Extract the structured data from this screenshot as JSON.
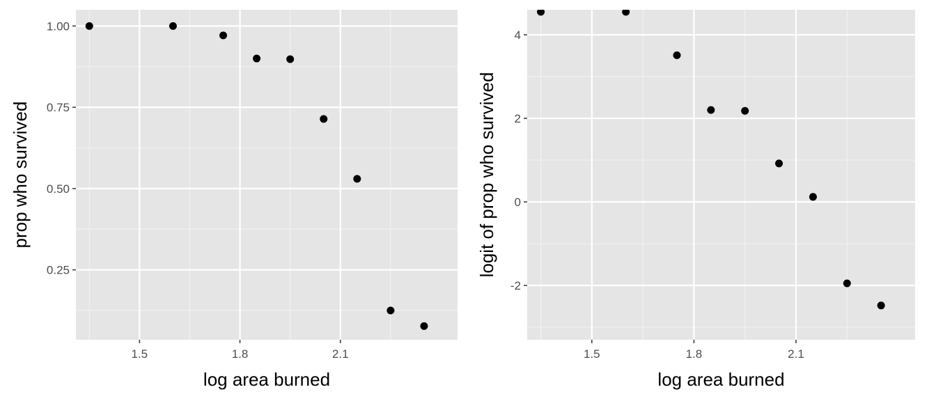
{
  "colors": {
    "panel_background": "#e5e5e5",
    "grid_major": "#ffffff",
    "grid_minor": "#f2f2f2",
    "point": "#000000",
    "tick_text": "#4d4d4d",
    "axis_title_text": "#000000"
  },
  "chart_data": [
    {
      "type": "scatter",
      "xlabel": "log area burned",
      "ylabel": "prop who survived",
      "xlim": [
        1.31,
        2.45
      ],
      "ylim": [
        0.035,
        1.05
      ],
      "x_ticks": [
        1.5,
        1.8,
        2.1
      ],
      "x_tick_labels": [
        "1.5",
        "1.8",
        "2.1"
      ],
      "y_ticks": [
        0.25,
        0.5,
        0.75,
        1.0
      ],
      "y_tick_labels": [
        "0.25",
        "0.50",
        "0.75",
        "1.00"
      ],
      "grid": true,
      "points": [
        {
          "x": 1.35,
          "y": 1.0
        },
        {
          "x": 1.6,
          "y": 1.0
        },
        {
          "x": 1.75,
          "y": 0.971
        },
        {
          "x": 1.85,
          "y": 0.9
        },
        {
          "x": 1.95,
          "y": 0.898
        },
        {
          "x": 2.05,
          "y": 0.714
        },
        {
          "x": 2.15,
          "y": 0.53
        },
        {
          "x": 2.25,
          "y": 0.125
        },
        {
          "x": 2.35,
          "y": 0.077
        }
      ]
    },
    {
      "type": "scatter",
      "xlabel": "log area burned",
      "ylabel": "logit of prop who survived",
      "xlim": [
        1.31,
        2.45
      ],
      "ylim": [
        -3.3,
        4.6
      ],
      "x_ticks": [
        1.5,
        1.8,
        2.1
      ],
      "x_tick_labels": [
        "1.5",
        "1.8",
        "2.1"
      ],
      "y_ticks": [
        -2,
        0,
        2,
        4
      ],
      "y_tick_labels": [
        "-2",
        "0",
        "2",
        "4"
      ],
      "grid": true,
      "points": [
        {
          "x": 1.35,
          "y": 4.55
        },
        {
          "x": 1.6,
          "y": 4.55
        },
        {
          "x": 1.75,
          "y": 3.51
        },
        {
          "x": 1.85,
          "y": 2.2
        },
        {
          "x": 1.95,
          "y": 2.18
        },
        {
          "x": 2.05,
          "y": 0.92
        },
        {
          "x": 2.15,
          "y": 0.12
        },
        {
          "x": 2.25,
          "y": -1.95
        },
        {
          "x": 2.35,
          "y": -2.48
        }
      ]
    }
  ]
}
